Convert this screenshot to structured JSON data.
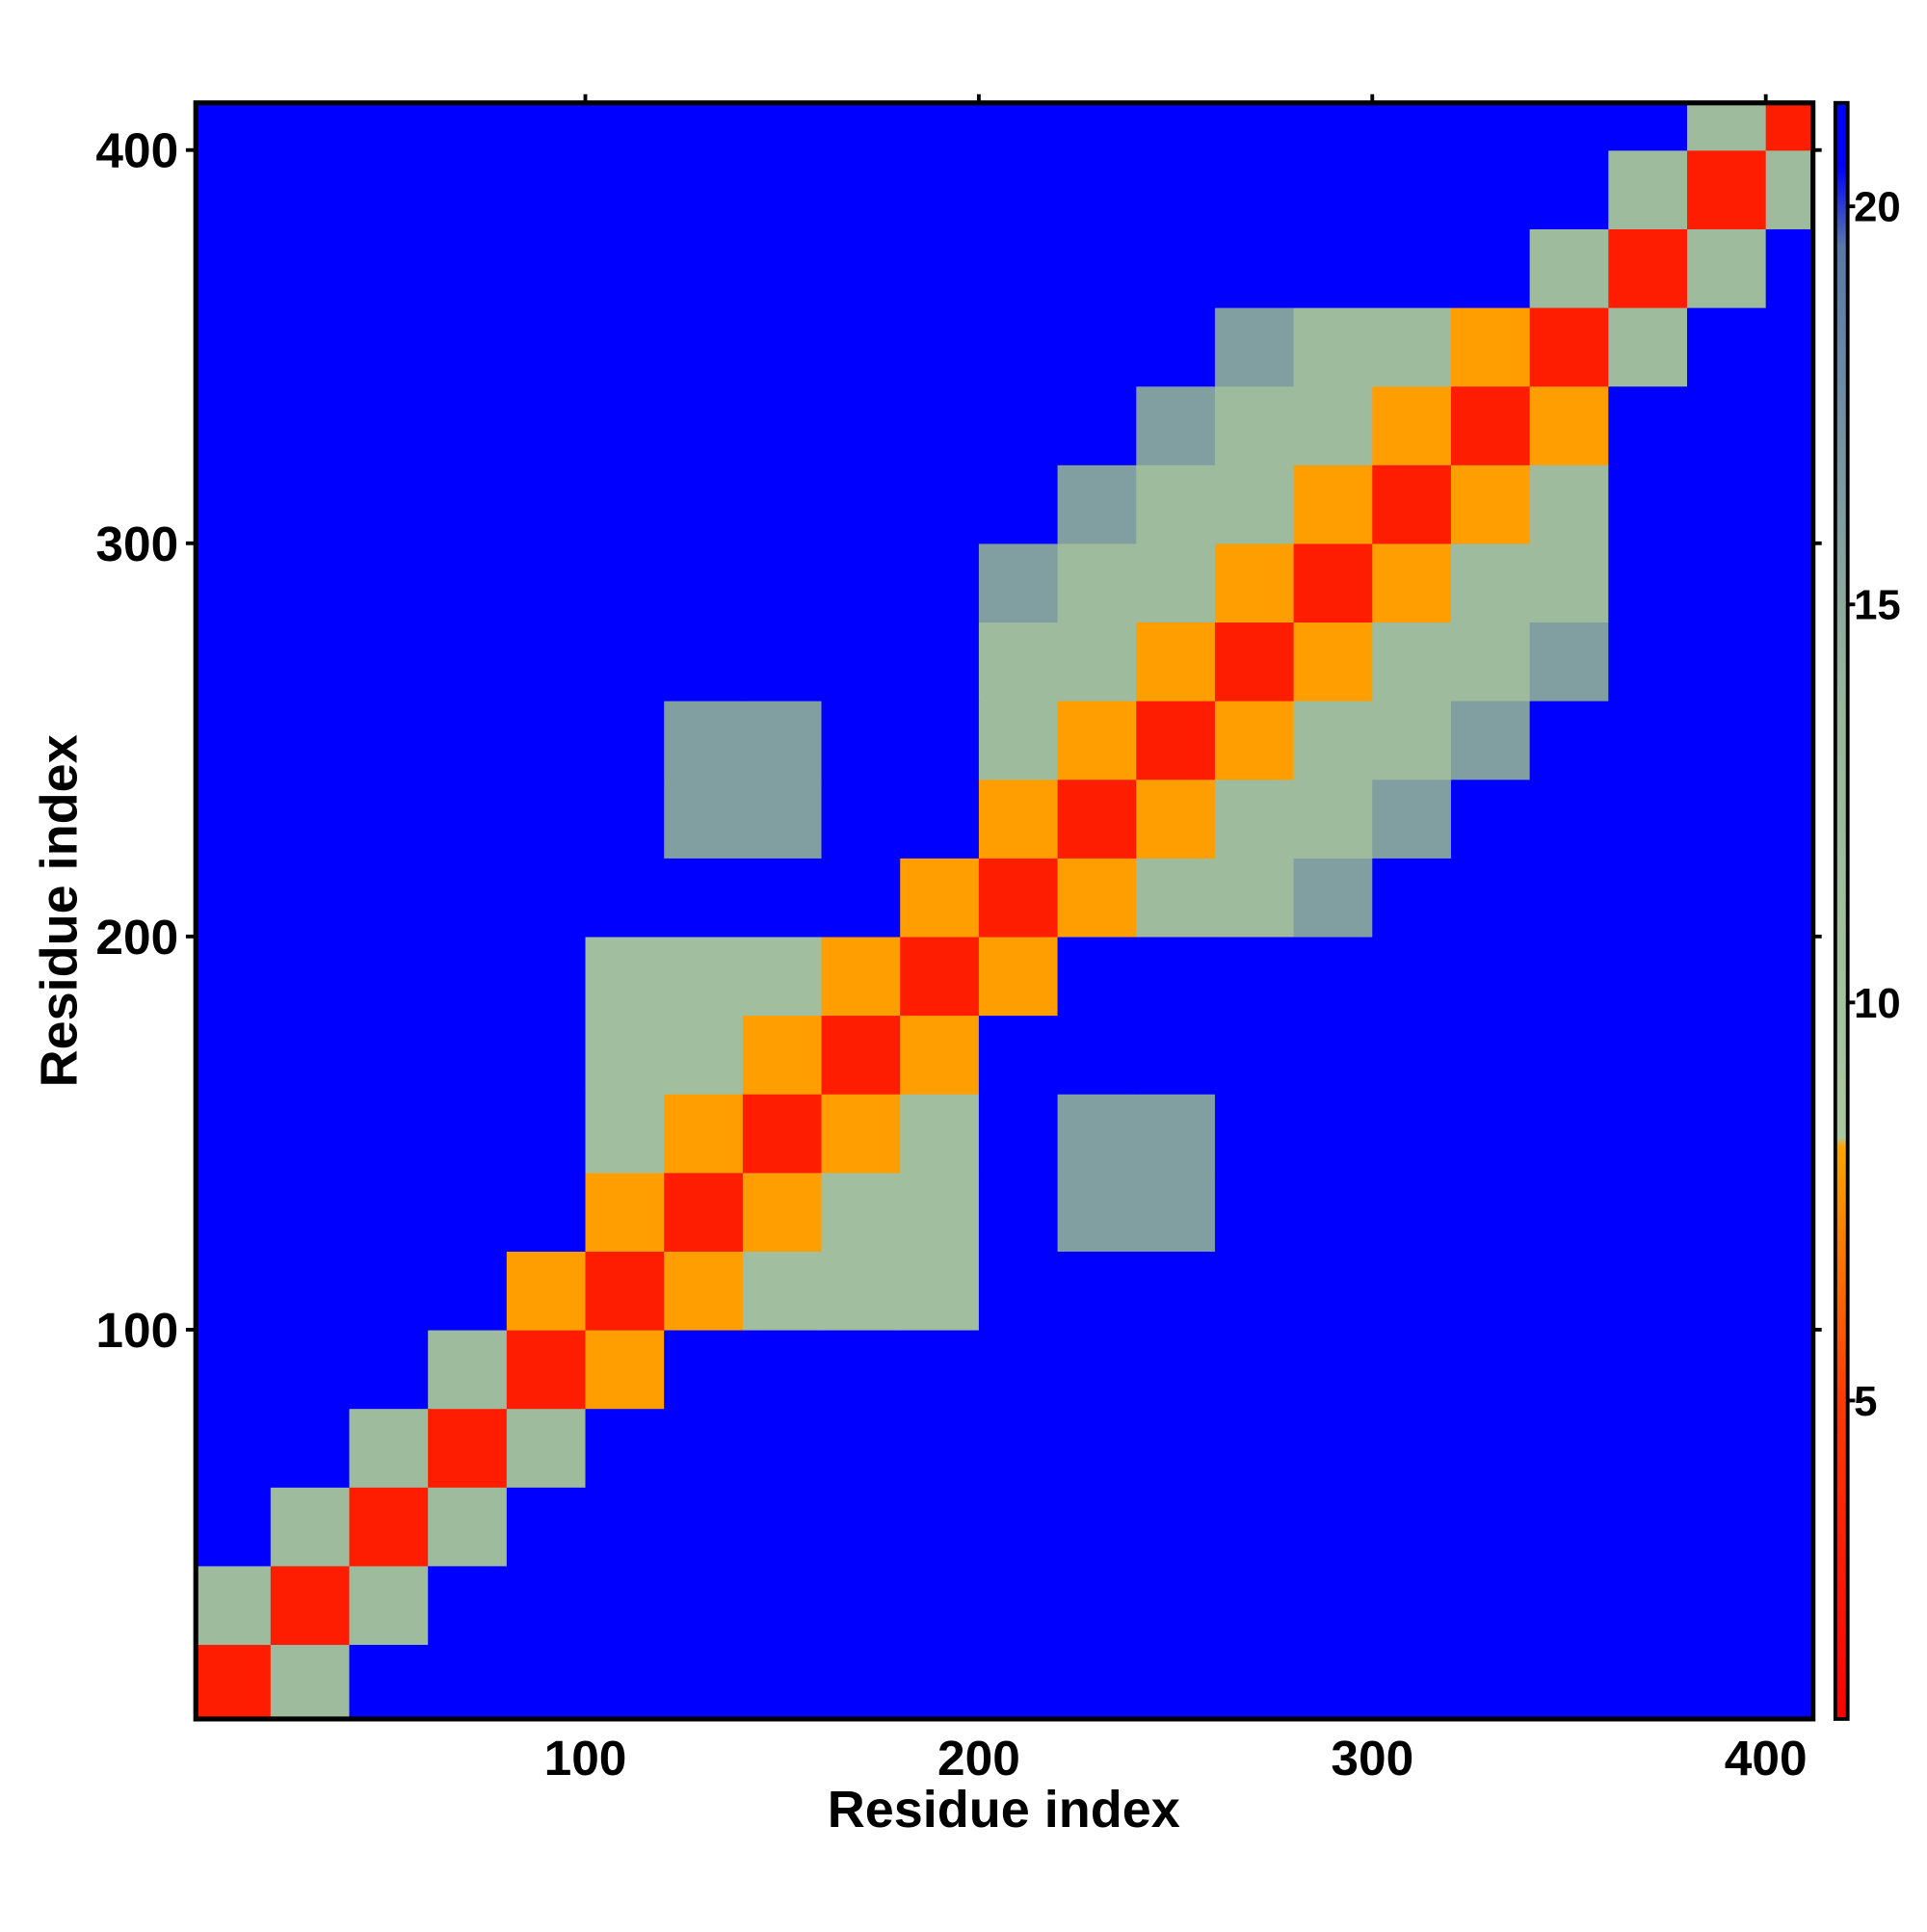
{
  "chart_data": {
    "type": "heatmap",
    "x_label": "Residue index",
    "y_label": "Residue index",
    "x": [
      10,
      30,
      50,
      70,
      90,
      110,
      130,
      150,
      170,
      190,
      210,
      230,
      250,
      270,
      290,
      310,
      330,
      350,
      370,
      390,
      410
    ],
    "y": [
      10,
      30,
      50,
      70,
      90,
      110,
      130,
      150,
      170,
      190,
      210,
      230,
      250,
      270,
      290,
      310,
      330,
      350,
      370,
      390,
      410
    ],
    "z": [
      [
        3,
        12,
        21,
        21,
        21,
        21,
        21,
        21,
        21,
        21,
        21,
        21,
        21,
        21,
        21,
        21,
        21,
        21,
        21,
        21,
        21
      ],
      [
        12,
        3,
        12,
        21,
        21,
        21,
        21,
        21,
        21,
        21,
        21,
        21,
        21,
        21,
        21,
        21,
        21,
        21,
        21,
        21,
        21
      ],
      [
        21,
        12,
        3,
        12,
        21,
        21,
        21,
        21,
        21,
        21,
        21,
        21,
        21,
        21,
        21,
        21,
        21,
        21,
        21,
        21,
        21
      ],
      [
        21,
        21,
        12,
        3,
        12,
        21,
        21,
        21,
        21,
        21,
        21,
        21,
        21,
        21,
        21,
        21,
        21,
        21,
        21,
        21,
        21
      ],
      [
        21,
        21,
        21,
        12,
        3,
        8,
        21,
        21,
        21,
        21,
        21,
        21,
        21,
        21,
        21,
        21,
        21,
        21,
        21,
        21,
        21
      ],
      [
        21,
        21,
        21,
        21,
        8,
        3,
        8,
        11,
        11,
        11,
        21,
        21,
        21,
        21,
        21,
        21,
        21,
        21,
        21,
        21,
        21
      ],
      [
        21,
        21,
        21,
        21,
        21,
        8,
        3,
        8,
        11,
        11,
        21,
        16,
        16,
        21,
        21,
        21,
        21,
        21,
        21,
        21,
        21
      ],
      [
        21,
        21,
        21,
        21,
        21,
        11,
        8,
        3,
        8,
        11,
        21,
        16,
        16,
        21,
        21,
        21,
        21,
        21,
        21,
        21,
        21
      ],
      [
        21,
        21,
        21,
        21,
        21,
        11,
        11,
        8,
        3,
        8,
        21,
        21,
        21,
        21,
        21,
        21,
        21,
        21,
        21,
        21,
        21
      ],
      [
        21,
        21,
        21,
        21,
        21,
        11,
        11,
        11,
        8,
        3,
        8,
        21,
        21,
        21,
        21,
        21,
        21,
        21,
        21,
        21,
        21
      ],
      [
        21,
        21,
        21,
        21,
        21,
        21,
        21,
        21,
        21,
        8,
        3,
        8,
        12,
        12,
        16,
        21,
        21,
        21,
        21,
        21,
        21
      ],
      [
        21,
        21,
        21,
        21,
        21,
        21,
        16,
        16,
        21,
        21,
        8,
        3,
        8,
        12,
        12,
        16,
        21,
        21,
        21,
        21,
        21
      ],
      [
        21,
        21,
        21,
        21,
        21,
        21,
        16,
        16,
        21,
        21,
        12,
        8,
        3,
        8,
        12,
        12,
        16,
        21,
        21,
        21,
        21
      ],
      [
        21,
        21,
        21,
        21,
        21,
        21,
        21,
        21,
        21,
        21,
        12,
        12,
        8,
        3,
        8,
        12,
        12,
        16,
        21,
        21,
        21
      ],
      [
        21,
        21,
        21,
        21,
        21,
        21,
        21,
        21,
        21,
        21,
        16,
        12,
        12,
        8,
        3,
        8,
        12,
        12,
        21,
        21,
        21
      ],
      [
        21,
        21,
        21,
        21,
        21,
        21,
        21,
        21,
        21,
        21,
        21,
        16,
        12,
        12,
        8,
        3,
        8,
        12,
        21,
        21,
        21
      ],
      [
        21,
        21,
        21,
        21,
        21,
        21,
        21,
        21,
        21,
        21,
        21,
        21,
        16,
        12,
        12,
        8,
        3,
        8,
        21,
        21,
        21
      ],
      [
        21,
        21,
        21,
        21,
        21,
        21,
        21,
        21,
        21,
        21,
        21,
        21,
        21,
        16,
        12,
        12,
        8,
        3,
        12,
        21,
        21
      ],
      [
        21,
        21,
        21,
        21,
        21,
        21,
        21,
        21,
        21,
        21,
        21,
        21,
        21,
        21,
        21,
        21,
        21,
        12,
        3,
        12,
        21
      ],
      [
        21,
        21,
        21,
        21,
        21,
        21,
        21,
        21,
        21,
        21,
        21,
        21,
        21,
        21,
        21,
        21,
        21,
        21,
        12,
        3,
        12
      ],
      [
        21,
        21,
        21,
        21,
        21,
        21,
        21,
        21,
        21,
        21,
        21,
        21,
        21,
        21,
        21,
        21,
        21,
        21,
        21,
        12,
        3
      ]
    ],
    "xlim": [
      1,
      412
    ],
    "ylim": [
      1,
      412
    ],
    "xticks": [
      100,
      200,
      300,
      400
    ],
    "yticks": [
      100,
      200,
      300,
      400
    ],
    "zlim": [
      1,
      21.3
    ],
    "zticks": [
      5,
      10,
      15,
      20
    ],
    "colorscale": [
      {
        "value": 1,
        "color": "#ff0000"
      },
      {
        "value": 5,
        "color": "#ff3a00"
      },
      {
        "value": 8.2,
        "color": "#ffa500"
      },
      {
        "value": 8.3,
        "color": "#aac8a0"
      },
      {
        "value": 14,
        "color": "#98b49c"
      },
      {
        "value": 19.5,
        "color": "#5a78a8"
      },
      {
        "value": 20.5,
        "color": "#0000ff"
      },
      {
        "value": 21.3,
        "color": "#0000ff"
      }
    ]
  }
}
